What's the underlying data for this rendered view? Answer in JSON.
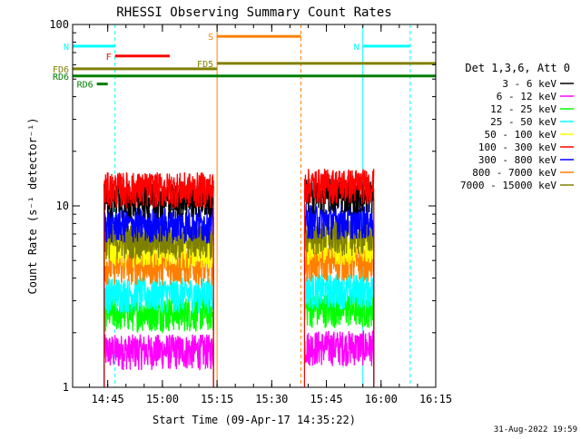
{
  "chart_data": {
    "type": "line",
    "title": "RHESSI Observing Summary Count Rates",
    "xlabel": "Start Time (09-Apr-17 14:35:22)",
    "ylabel": "Count Rate (s⁻¹ detector⁻¹)",
    "yscale": "log",
    "ylim": [
      1,
      100
    ],
    "xlim": [
      "14:35:22",
      "16:15"
    ],
    "x_ticks": [
      "14:45",
      "15:00",
      "15:15",
      "15:30",
      "15:45",
      "16:00",
      "16:15"
    ],
    "y_ticks": [
      "1",
      "10",
      "100"
    ],
    "legend_title": "Det 1,3,6, Att 0",
    "legend_position": "right",
    "series": [
      {
        "name": "3 - 6 keV",
        "color": "#000000",
        "level": 11.0
      },
      {
        "name": "6 - 12 keV",
        "color": "#ff00ff",
        "level": 1.6
      },
      {
        "name": "12 - 25 keV",
        "color": "#00ff00",
        "level": 2.6
      },
      {
        "name": "25 - 50 keV",
        "color": "#00ffff",
        "level": 3.3
      },
      {
        "name": "50 - 100 keV",
        "color": "#ffff00",
        "level": 5.8
      },
      {
        "name": "100 - 300 keV",
        "color": "#ff0000",
        "level": 12.5
      },
      {
        "name": "300 - 800 keV",
        "color": "#0000ff",
        "level": 8.0
      },
      {
        "name": "800 - 7000 keV",
        "color": "#ff8000",
        "level": 4.7
      },
      {
        "name": "7000 - 15000 keV",
        "color": "#808000",
        "level": 6.5
      }
    ],
    "data_intervals": [
      {
        "start": "14:44",
        "end": "15:14"
      },
      {
        "start": "15:39",
        "end": "15:58"
      }
    ],
    "flag_bars": [
      {
        "label": "N",
        "color": "#00ffff",
        "start": "14:35:22",
        "end": "14:47",
        "value": 76
      },
      {
        "label": "N",
        "color": "#00ffff",
        "start": "15:55",
        "end": "16:08",
        "value": 76
      },
      {
        "label": "F",
        "color": "#ff0000",
        "start": "14:47",
        "end": "15:02",
        "value": 67
      },
      {
        "label": "S",
        "color": "#ff8000",
        "start": "15:15",
        "end": "15:38",
        "value": 86
      },
      {
        "label": "FD5",
        "color": "#808000",
        "start": "15:15",
        "end": "16:15",
        "value": 61
      },
      {
        "label": "FD6",
        "color": "#808000",
        "start": "14:35:22",
        "end": "15:15",
        "value": 57
      },
      {
        "label": "RD6",
        "color": "#008000",
        "start": "14:35:22",
        "end": "16:15",
        "value": 52
      },
      {
        "label": "RD6",
        "color": "#008000",
        "start": "14:42",
        "end": "14:45",
        "value": 47
      }
    ],
    "vertical_lines": [
      {
        "time": "14:35:22",
        "color": "#00ffff",
        "style": "solid"
      },
      {
        "time": "14:47",
        "color": "#00ffff",
        "style": "dashed"
      },
      {
        "time": "15:15",
        "color": "#ff8000",
        "style": "solid"
      },
      {
        "time": "15:38",
        "color": "#ff8000",
        "style": "dashed"
      },
      {
        "time": "15:55",
        "color": "#00ffff",
        "style": "solid"
      },
      {
        "time": "16:08",
        "color": "#00ffff",
        "style": "dashed"
      }
    ]
  },
  "footer": {
    "timestamp": "31-Aug-2022 19:59"
  }
}
